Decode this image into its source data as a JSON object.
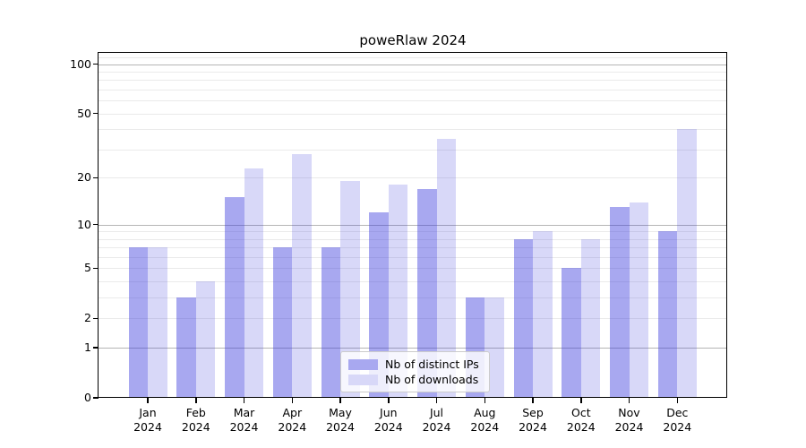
{
  "title": "poweRlaw 2024",
  "chart_data": {
    "type": "bar",
    "title": "poweRlaw 2024",
    "categories": [
      "Jan 2024",
      "Feb 2024",
      "Mar 2024",
      "Apr 2024",
      "May 2024",
      "Jun 2024",
      "Jul 2024",
      "Aug 2024",
      "Sep 2024",
      "Oct 2024",
      "Nov 2024",
      "Dec 2024"
    ],
    "series": [
      {
        "name": "Nb of distinct IPs",
        "values": [
          7,
          3,
          15,
          7,
          7,
          12,
          17,
          3,
          8,
          5,
          13,
          9
        ]
      },
      {
        "name": "Nb of downloads",
        "values": [
          7,
          4,
          23,
          28,
          19,
          18,
          35,
          3,
          9,
          8,
          14,
          40
        ]
      }
    ],
    "yscale": "log1p",
    "ylim": [
      0,
      117
    ],
    "yticks": [
      0,
      1,
      2,
      5,
      10,
      20,
      50,
      100
    ],
    "major_yticks": [
      1,
      10,
      100
    ],
    "minor_yticks": [
      2,
      3,
      4,
      6,
      7,
      8,
      9,
      20,
      30,
      40,
      60,
      70,
      80,
      90,
      110
    ],
    "grid": true,
    "legend_position": "lower center"
  },
  "colors": {
    "ips_bar": "rgba(61,61,221,0.45)",
    "downloads_bar": "rgba(61,61,221,0.20)",
    "ips_swatch": "#a8a8f0",
    "downloads_swatch": "#d8d8f8",
    "major_grid": "#b5b5b5",
    "minor_grid": "#eaeaea",
    "axis": "#000000"
  }
}
